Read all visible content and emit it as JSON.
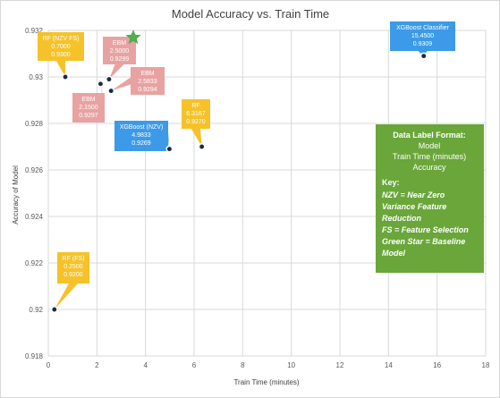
{
  "chart_data": {
    "type": "scatter",
    "title": "Model Accuracy vs. Train Time",
    "xlabel": "Train Time (minutes)",
    "ylabel": "Accuracy of Model",
    "xlim": [
      0,
      18
    ],
    "ylim": [
      0.918,
      0.932
    ],
    "xticks": [
      "0",
      "2",
      "4",
      "6",
      "8",
      "10",
      "12",
      "14",
      "16",
      "18"
    ],
    "yticks": [
      "0.918",
      "0.92",
      "0.922",
      "0.924",
      "0.926",
      "0.928",
      "0.93",
      "0.932"
    ],
    "grid": true,
    "points": [
      {
        "name": "RF (NZV FS)",
        "x": 0.7,
        "y": 0.93,
        "x_label": "0.7000",
        "y_label": "0.9300",
        "color": "#f5c22a"
      },
      {
        "name": "EBM",
        "x": 2.5,
        "y": 0.9299,
        "x_label": "2.5000",
        "y_label": "0.9299",
        "color": "#e8a2a2"
      },
      {
        "name": "EBM",
        "x": 2.5833,
        "y": 0.9294,
        "x_label": "2.5833",
        "y_label": "0.9294",
        "color": "#e8a2a2"
      },
      {
        "name": "EBM",
        "x": 2.15,
        "y": 0.9297,
        "x_label": "2.1500",
        "y_label": "0.9297",
        "color": "#e8a2a2"
      },
      {
        "name": "XGBoost (NZV)",
        "x": 4.9833,
        "y": 0.9269,
        "x_label": "4.9833",
        "y_label": "0.9269",
        "color": "#3c9ae8"
      },
      {
        "name": "RF",
        "x": 6.3167,
        "y": 0.927,
        "x_label": "6.3167",
        "y_label": "0.9270",
        "color": "#f5c22a"
      },
      {
        "name": "XGBoost Classifier",
        "x": 15.45,
        "y": 0.9309,
        "x_label": "15.4500",
        "y_label": "0.9309",
        "color": "#3c9ae8"
      },
      {
        "name": "RF (FS)",
        "x": 0.25,
        "y": 0.92,
        "x_label": "0.2500",
        "y_label": "0.9200",
        "color": "#f5c22a"
      }
    ],
    "baseline_marker": {
      "shape": "star",
      "color": "#4caf50"
    }
  },
  "note": {
    "background": "#6aa63a",
    "format_title": "Data Label Format:",
    "format_lines": [
      "Model",
      "Train Time (minutes)",
      "Accuracy"
    ],
    "key_title": "Key:",
    "key_lines": [
      "NZV = Near Zero",
      "Variance Feature",
      "Reduction",
      "FS = Feature Selection",
      "Green Star = Baseline",
      "Model"
    ]
  }
}
